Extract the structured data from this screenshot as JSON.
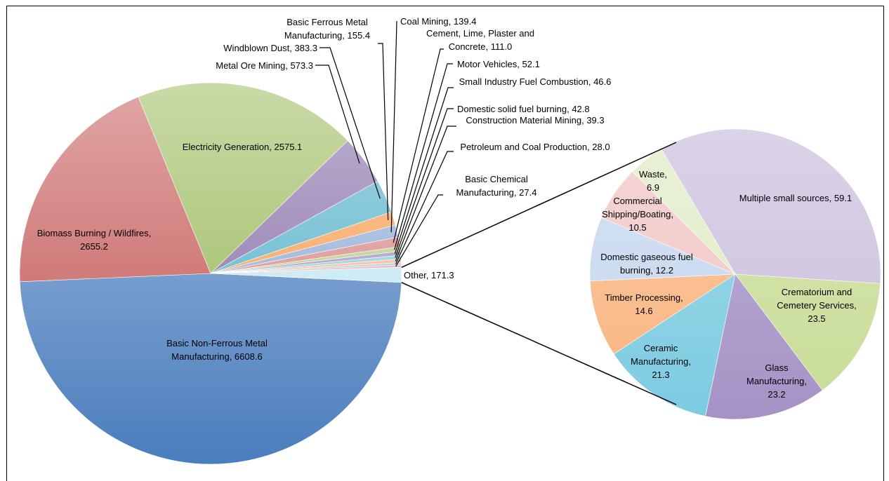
{
  "chart_data": [
    {
      "type": "pie",
      "categories": [
        "Basic Non-Ferrous Metal Manufacturing",
        "Biomass Burning / Wildfires",
        "Electricity Generation",
        "Metal Ore Mining",
        "Windblown Dust",
        "Basic Ferrous Metal Manufacturing",
        "Coal Mining",
        "Cement, Lime, Plaster and Concrete",
        "Motor Vehicles",
        "Small Industry Fuel Combustion",
        "Domestic solid fuel burning",
        "Construction Material Mining",
        "Petroleum and Coal Production",
        "Basic Chemical Manufacturing",
        "Other"
      ],
      "values": [
        6608.6,
        2655.2,
        2575.1,
        573.3,
        383.3,
        155.4,
        139.4,
        111.0,
        52.1,
        46.6,
        42.8,
        39.3,
        28.0,
        27.4,
        171.3
      ],
      "value_labels": [
        "6608.6",
        "2655.2",
        "2575.1",
        "573.3",
        "383.3",
        "155.4",
        "139.4",
        "111.0",
        "52.1",
        "46.6",
        "42.8",
        "39.3",
        "28.0",
        "27.4",
        "171.3"
      ],
      "colors": [
        "#4a7dbd",
        "#c0504d",
        "#92b44f",
        "#8064a2",
        "#4bacc6",
        "#f79646",
        "#86a6d4",
        "#d6817e",
        "#b0c982",
        "#a08dbd",
        "#86c8da",
        "#f9b07c",
        "#abc0e2",
        "#e0a9a7",
        "#bfe5f0"
      ]
    },
    {
      "type": "pie",
      "categories": [
        "Multiple small sources",
        "Crematorium and Cemetery Services",
        "Glass Manufacturing",
        "Ceramic Manufacturing",
        "Timber Processing",
        "Domestic gaseous fuel burning",
        "Commercial Shipping/Boating",
        "Waste"
      ],
      "values": [
        59.1,
        23.5,
        23.2,
        21.3,
        14.6,
        12.2,
        10.5,
        6.9
      ],
      "colors": [
        "#cbbfdd",
        "#c8dc96",
        "#a592c6",
        "#7ccbe1",
        "#f9b47f",
        "#c4d6ee",
        "#f0c4c3",
        "#dfebc5"
      ]
    }
  ]
}
